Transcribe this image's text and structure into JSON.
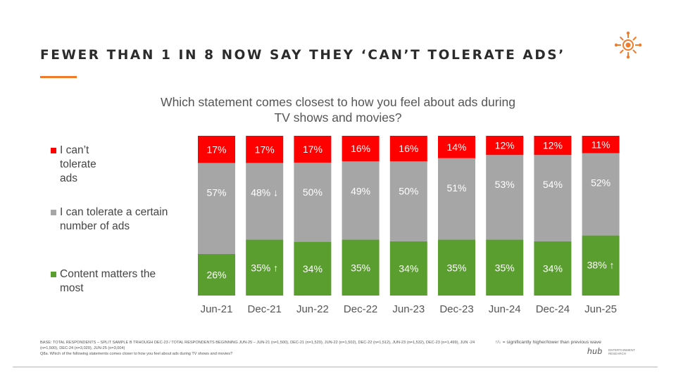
{
  "page": {
    "title": "FEWER THAN 1 IN 8 NOW SAY THEY ‘CAN’T TOLERATE ADS’",
    "logo_icon": "sun-burst-icon",
    "accent_color": "#f07c2b"
  },
  "chart_data": {
    "type": "bar",
    "stacked": true,
    "percent_stacked": true,
    "title": "Which statement comes closest to how you feel about ads during TV shows and movies?",
    "categories": [
      "Jun-21",
      "Dec-21",
      "Jun-22",
      "Dec-22",
      "Jun-23",
      "Dec-23",
      "Jun-24",
      "Dec-24",
      "Jun-25"
    ],
    "series": [
      {
        "name": "Content matters the most",
        "color": "#5a9e2f",
        "values": [
          26,
          35,
          34,
          35,
          34,
          35,
          35,
          34,
          38
        ],
        "labels": [
          "26%",
          "35% ↑",
          "34%",
          "35%",
          "34%",
          "35%",
          "35%",
          "34%",
          "38% ↑"
        ]
      },
      {
        "name": "I can tolerate a certain number of ads",
        "color": "#a6a6a6",
        "values": [
          57,
          48,
          50,
          49,
          50,
          51,
          53,
          54,
          52
        ],
        "labels": [
          "57%",
          "48% ↓",
          "50%",
          "49%",
          "50%",
          "51%",
          "53%",
          "54%",
          "52%"
        ]
      },
      {
        "name": "I can’t tolerate ads",
        "color": "#ff0000",
        "values": [
          17,
          17,
          17,
          16,
          16,
          14,
          12,
          12,
          11
        ],
        "labels": [
          "17%",
          "17%",
          "17%",
          "16%",
          "16%",
          "14%",
          "12%",
          "12%",
          "11%"
        ]
      }
    ],
    "ylim": [
      0,
      100
    ],
    "xlabel": "",
    "ylabel": "",
    "grid": false,
    "legend": "left"
  },
  "legend_items": [
    {
      "label": "I can’t tolerate ads",
      "color": "#ff0000"
    },
    {
      "label": "I can tolerate a certain number of ads",
      "color": "#a6a6a6"
    },
    {
      "label": "Content matters the most",
      "color": "#5a9e2f"
    }
  ],
  "footer": {
    "base_note": "BASE: TOTAL RESPONDENTS – SPLIT SAMPLE B TRHOUGH DEC-23 / TOTAL RESPONDENTS BEGINNING JUN-25 – JUN-21 (n=1,500), DEC-21 (n=1,520), JUN-22 (n=1,502), DEC-22 (n=1,512), JUN-23 (n=1,532), DEC-23 (n=1,499), JUN -24 (n=1,500), DEC-24 (n=3,020), JUN-25 (n=3,004)",
    "question_note": "Q8a. Which of the following statements comes closer to how you feel about ads during TV shows and movies?",
    "significance_note": "↑/↓ = significantly higher/lower than previous wave",
    "brand_word": "hub",
    "brand_sub_1": "ENTERTAINMENT",
    "brand_sub_2": "RESEARCH"
  }
}
